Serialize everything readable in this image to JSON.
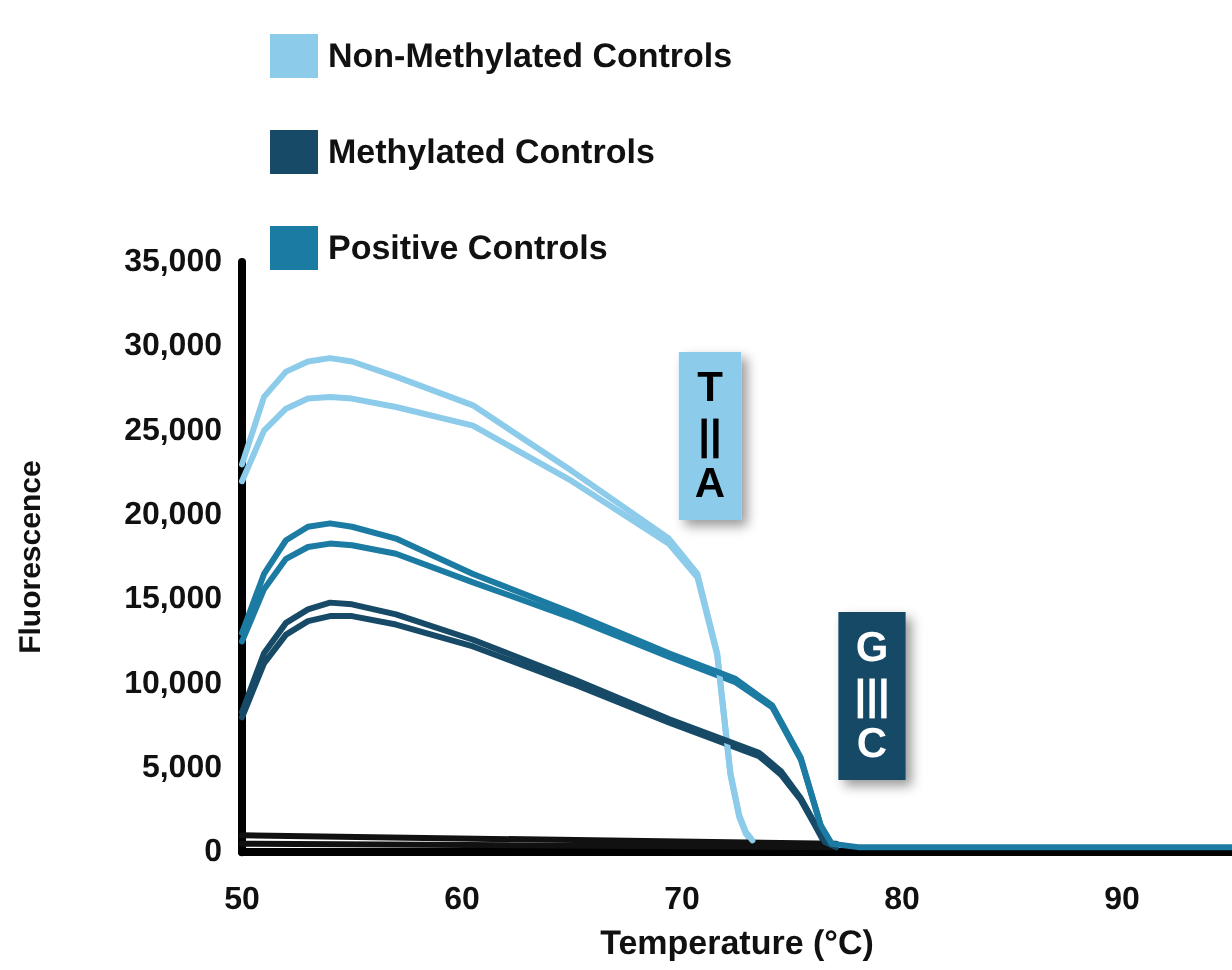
{
  "chart_data": {
    "type": "line",
    "xlabel": "Temperature (°C)",
    "ylabel": "Fluorescence",
    "xlim": [
      50,
      95
    ],
    "xticks": [
      50,
      60,
      70,
      80,
      90
    ],
    "ylim": [
      0,
      35000
    ],
    "yticks": [
      {
        "value": 0,
        "label": "0"
      },
      {
        "value": 5000,
        "label": "5,000"
      },
      {
        "value": 10000,
        "label": "10,000"
      },
      {
        "value": 15000,
        "label": "15,000"
      },
      {
        "value": 20000,
        "label": "20,000"
      },
      {
        "value": 25000,
        "label": "25,000"
      },
      {
        "value": 30000,
        "label": "30,000"
      },
      {
        "value": 35000,
        "label": "35,000"
      }
    ],
    "grid": false,
    "legend": "top left",
    "marker": "none",
    "line_style": "solid",
    "annotations": [
      "T\n||\nA",
      "G\n|||\nC"
    ],
    "series": [
      {
        "name": "Non-Methylated Controls",
        "color": "#8ccbea",
        "x": [
          50,
          51,
          52,
          53,
          54,
          55,
          57,
          60.5,
          65,
          69.4,
          70.7,
          71.6,
          72.2,
          72.6,
          72.9,
          73.2
        ],
        "values": [
          23000,
          27000,
          28500,
          29100,
          29300,
          29100,
          28200,
          26500,
          22600,
          18600,
          16500,
          11800,
          4700,
          2200,
          1200,
          700
        ]
      },
      {
        "name": "Methylated Controls",
        "color": "#164a66",
        "x": [
          50,
          51,
          52,
          53,
          54,
          55,
          57,
          60.5,
          65,
          69.4,
          73.5,
          74.5,
          75.4,
          76,
          76.5,
          77
        ],
        "values": [
          8300,
          11800,
          13600,
          14400,
          14800,
          14700,
          14100,
          12600,
          10300,
          7900,
          5900,
          4800,
          3200,
          1800,
          600,
          300
        ]
      },
      {
        "name": "Positive Controls",
        "color": "#1b7ba3",
        "x": [
          50,
          51,
          52,
          53,
          54,
          55,
          57,
          60.5,
          65,
          69.4,
          72.4,
          74.1,
          75.4,
          76.3,
          76.8,
          78,
          85,
          95
        ],
        "values": [
          13000,
          16500,
          18500,
          19300,
          19500,
          19300,
          18600,
          16500,
          14200,
          11800,
          10300,
          8700,
          5600,
          1600,
          500,
          300,
          300,
          300
        ]
      },
      {
        "color": "#8ccbea",
        "x": [
          50,
          51,
          52,
          53,
          54,
          55,
          57,
          60.5,
          65,
          69.4,
          70.7,
          71.6,
          72.2,
          72.6,
          72.9,
          73.2
        ],
        "values": [
          22000,
          25000,
          26300,
          26900,
          27000,
          26900,
          26400,
          25300,
          22000,
          18300,
          16300,
          11700,
          4600,
          2100,
          1100,
          600
        ]
      },
      {
        "color": "#164a66",
        "x": [
          50,
          51,
          52,
          53,
          54,
          55,
          57,
          60.5,
          65,
          69.4,
          73.5,
          74.5,
          75.4,
          76,
          76.5,
          77
        ],
        "values": [
          8000,
          11200,
          12900,
          13700,
          14000,
          14000,
          13500,
          12200,
          10000,
          7700,
          5700,
          4600,
          3100,
          1700,
          500,
          300
        ]
      },
      {
        "color": "#1b7ba3",
        "x": [
          50,
          51,
          52,
          53,
          54,
          55,
          57,
          60.5,
          65,
          69.4,
          72.4,
          74.1,
          75.4,
          76.3,
          76.8
        ],
        "values": [
          12500,
          15600,
          17400,
          18100,
          18300,
          18200,
          17700,
          16000,
          13900,
          11600,
          10100,
          8600,
          5500,
          1600,
          500
        ]
      },
      {
        "color": "#111111",
        "x": [
          50,
          77
        ],
        "values": [
          1000,
          500
        ]
      },
      {
        "color": "#111111",
        "x": [
          50,
          77
        ],
        "values": [
          500,
          300
        ]
      }
    ]
  }
}
